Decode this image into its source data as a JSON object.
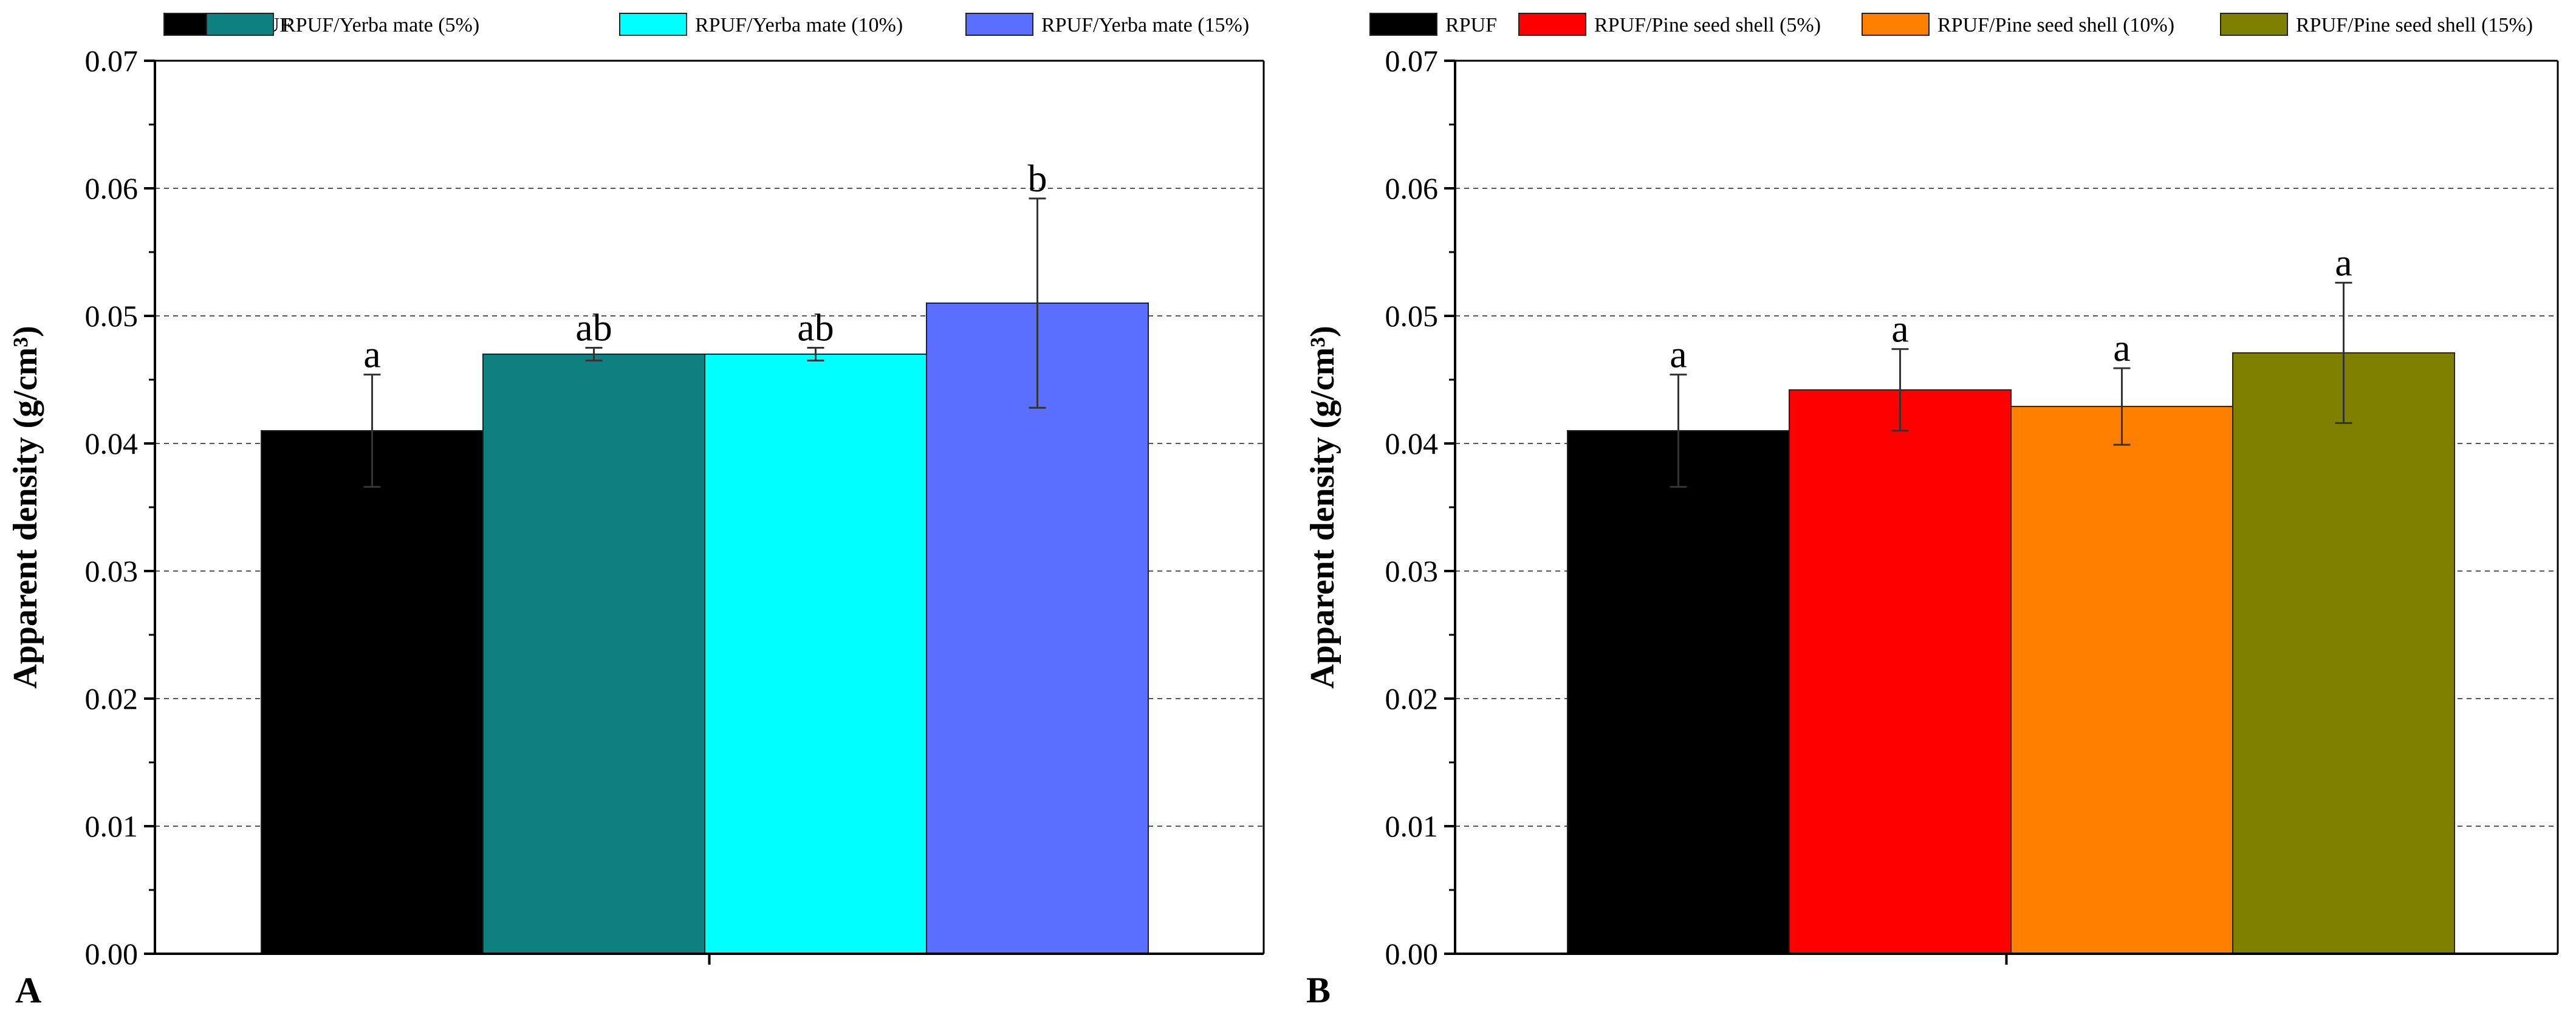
{
  "chart_data": [
    {
      "type": "bar",
      "panel_label": "A",
      "ylabel": "Apparent density (g/cm³)",
      "ylim": [
        0,
        0.07
      ],
      "yticks": [
        "0.00",
        "0.01",
        "0.02",
        "0.03",
        "0.04",
        "0.05",
        "0.06",
        "0.07"
      ],
      "grid": "horizontal dashed",
      "legend_position": "top",
      "series": [
        {
          "name": "RPUF",
          "value": 0.041,
          "error": 0.0044,
          "significance": "a",
          "color": "#000000"
        },
        {
          "name": "RPUF/Yerba mate (5%)",
          "value": 0.047,
          "error": 0.0005,
          "significance": "ab",
          "color": "#0e8080"
        },
        {
          "name": "RPUF/Yerba mate (10%)",
          "value": 0.047,
          "error": 0.0005,
          "significance": "ab",
          "color": "#00ffff"
        },
        {
          "name": "RPUF/Yerba mate (15%)",
          "value": 0.051,
          "error": 0.0082,
          "significance": "b",
          "color": "#5a6fff"
        }
      ]
    },
    {
      "type": "bar",
      "panel_label": "B",
      "ylabel": "Apparent density (g/cm³)",
      "ylim": [
        0,
        0.07
      ],
      "yticks": [
        "0.00",
        "0.01",
        "0.02",
        "0.03",
        "0.04",
        "0.05",
        "0.06",
        "0.07"
      ],
      "grid": "horizontal dashed",
      "legend_position": "top",
      "series": [
        {
          "name": "RPUF",
          "value": 0.041,
          "error": 0.0044,
          "significance": "a",
          "color": "#000000"
        },
        {
          "name": "RPUF/Pine seed shell (5%)",
          "value": 0.0442,
          "error": 0.0032,
          "significance": "a",
          "color": "#ff0000"
        },
        {
          "name": "RPUF/Pine seed shell (10%)",
          "value": 0.0429,
          "error": 0.003,
          "significance": "a",
          "color": "#ff8000"
        },
        {
          "name": "RPUF/Pine seed shell (15%)",
          "value": 0.0471,
          "error": 0.0055,
          "significance": "a",
          "color": "#808000"
        }
      ]
    }
  ]
}
